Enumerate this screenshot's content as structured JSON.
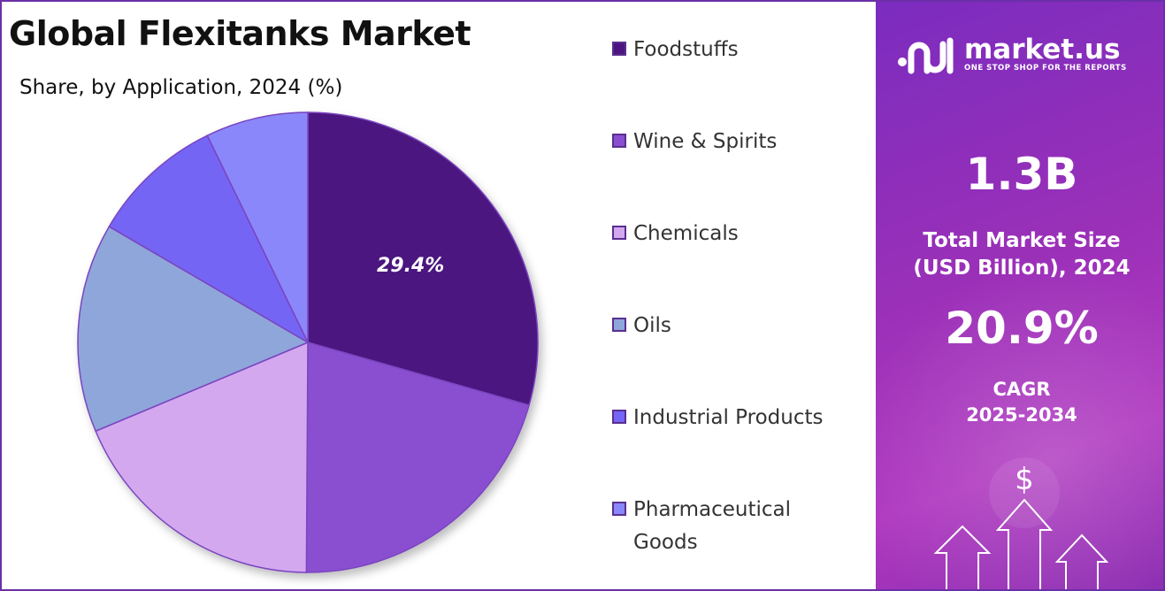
{
  "header": {
    "title": "Global Flexitanks Market",
    "subtitle": "Share, by Application, 2024 (%)"
  },
  "chart_data": {
    "type": "pie",
    "categories": [
      "Foodstuffs",
      "Wine & Spirits",
      "Chemicals",
      "Oils",
      "Industrial Products",
      "Pharmaceutical Goods"
    ],
    "values": [
      29.4,
      20.7,
      18.6,
      14.7,
      9.4,
      7.2
    ],
    "data_labels": [
      "29.4%",
      "",
      "",
      "",
      "",
      ""
    ],
    "colors": [
      "#4b167f",
      "#8a4fd0",
      "#d3a8ef",
      "#8fa6da",
      "#7565f5",
      "#8a87fb"
    ],
    "legend_position": "right"
  },
  "brand": {
    "name": "market.us",
    "tagline": "ONE STOP SHOP FOR THE REPORTS"
  },
  "stats": {
    "market_size_value": "1.3B",
    "market_size_label_line1": "Total Market Size",
    "market_size_label_line2": "(USD Billion), 2024",
    "cagr_value": "20.9%",
    "cagr_label_line1": "CAGR",
    "cagr_label_line2": "2025-2034"
  },
  "decor": {
    "currency_symbol": "$",
    "icon": "growth-arrows-icon"
  }
}
